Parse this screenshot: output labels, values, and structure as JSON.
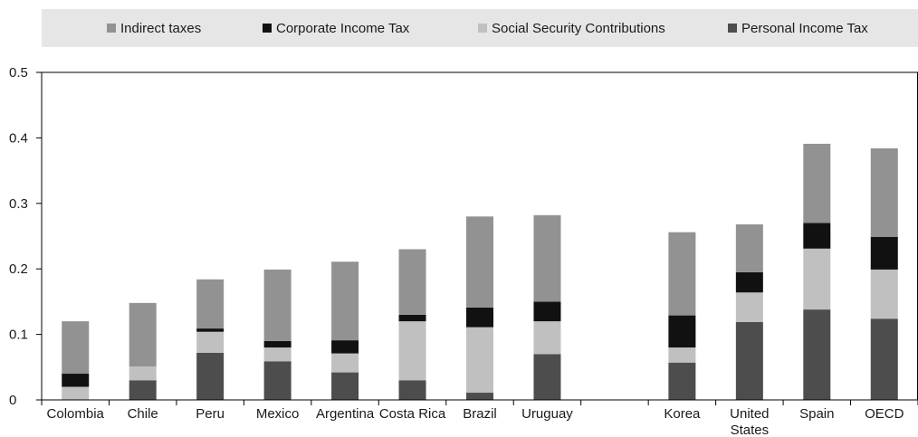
{
  "chart_data": {
    "type": "bar",
    "stacked": true,
    "categories": [
      "Colombia",
      "Chile",
      "Peru",
      "Mexico",
      "Argentina",
      "Costa Rica",
      "Brazil",
      "Uruguay",
      "",
      "Korea",
      "United States",
      "Spain",
      "OECD"
    ],
    "category_lines": [
      [
        "Colombia"
      ],
      [
        "Chile"
      ],
      [
        "Peru"
      ],
      [
        "Mexico"
      ],
      [
        "Argentina"
      ],
      [
        "Costa Rica"
      ],
      [
        "Brazil"
      ],
      [
        "Uruguay"
      ],
      [],
      [
        "Korea"
      ],
      [
        "United",
        "States"
      ],
      [
        "Spain"
      ],
      [
        "OECD"
      ]
    ],
    "series": [
      {
        "name": "Personal Income Tax",
        "color": "#4d4d4d",
        "values": [
          0.0,
          0.03,
          0.072,
          0.059,
          0.042,
          0.03,
          0.011,
          0.07,
          null,
          0.057,
          0.119,
          0.138,
          0.124
        ]
      },
      {
        "name": "Social Security Contributions",
        "color": "#c0c0c0",
        "values": [
          0.02,
          0.021,
          0.032,
          0.021,
          0.029,
          0.09,
          0.1,
          0.05,
          null,
          0.023,
          0.045,
          0.093,
          0.075
        ]
      },
      {
        "name": "Corporate Income Tax",
        "color": "#111111",
        "values": [
          0.02,
          0.0,
          0.005,
          0.01,
          0.02,
          0.01,
          0.03,
          0.03,
          null,
          0.049,
          0.031,
          0.039,
          0.05
        ]
      },
      {
        "name": "Indirect taxes",
        "color": "#929292",
        "values": [
          0.08,
          0.097,
          0.075,
          0.109,
          0.12,
          0.1,
          0.139,
          0.132,
          null,
          0.127,
          0.073,
          0.121,
          0.135
        ]
      }
    ],
    "legend_order": [
      "Indirect taxes",
      "Corporate Income Tax",
      "Social Security Contributions",
      "Personal Income Tax"
    ],
    "legend_position": "top",
    "ylim": [
      0,
      0.5
    ],
    "yticks": [
      0,
      0.1,
      0.2,
      0.3,
      0.4,
      0.5
    ],
    "ytick_labels": [
      "0",
      "0.1",
      "0.2",
      "0.3",
      "0.4",
      "0.5"
    ],
    "title": "",
    "xlabel": "",
    "ylabel": "",
    "grid": false,
    "legend_background": "#e6e6e6"
  }
}
